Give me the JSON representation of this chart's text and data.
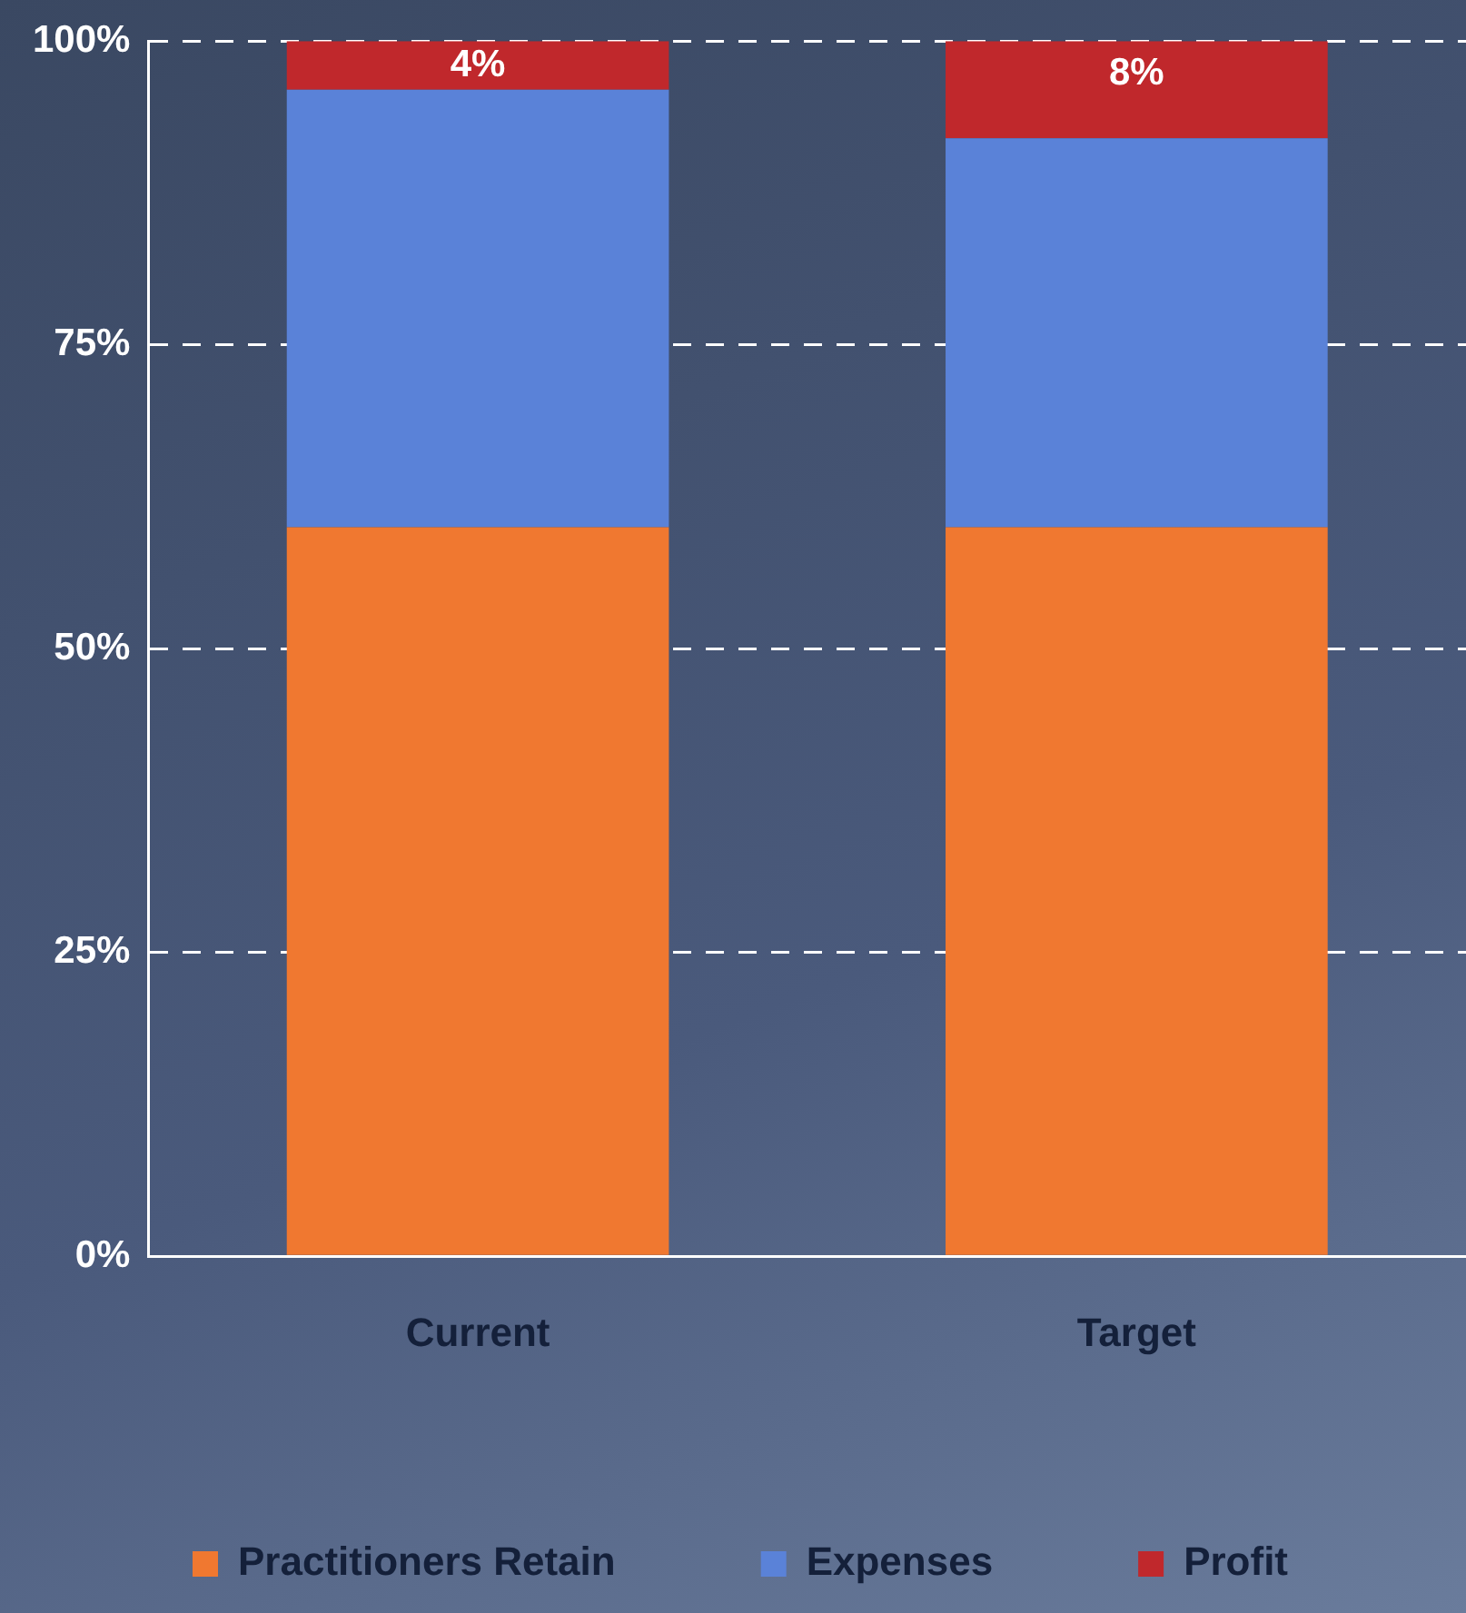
{
  "chart_data": {
    "type": "bar",
    "stacked": true,
    "categories": [
      "Current",
      "Target"
    ],
    "series": [
      {
        "name": "Practitioners Retain",
        "color": "#f07830",
        "values": [
          60,
          60
        ]
      },
      {
        "name": "Expenses",
        "color": "#5a82d8",
        "values": [
          36,
          32
        ]
      },
      {
        "name": "Profit",
        "color": "#c0282c",
        "values": [
          4,
          8
        ],
        "value_labels": [
          "4%",
          "8%"
        ]
      }
    ],
    "ylim": [
      0,
      100
    ],
    "yticks": [
      {
        "value": 0,
        "label": "0%"
      },
      {
        "value": 25,
        "label": "25%"
      },
      {
        "value": 50,
        "label": "50%"
      },
      {
        "value": 75,
        "label": "75%"
      },
      {
        "value": 100,
        "label": "100%"
      }
    ],
    "grid": "y",
    "line_style": "dashed",
    "legend": "bottom"
  }
}
